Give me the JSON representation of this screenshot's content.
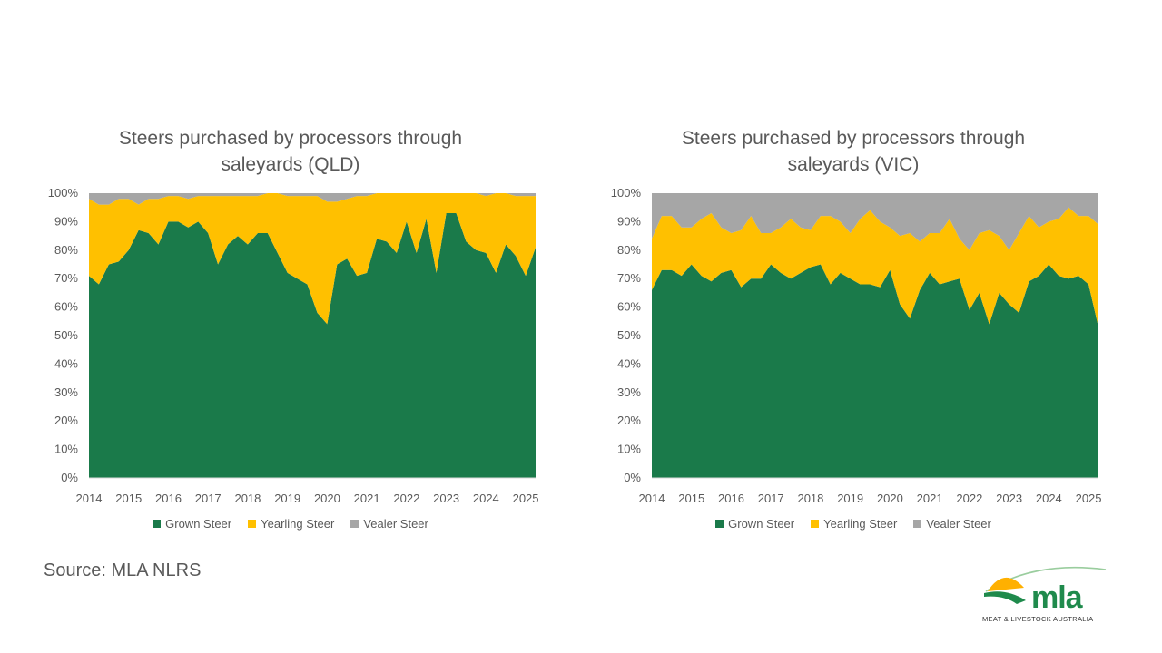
{
  "source": "Source: MLA NLRS",
  "logo": {
    "word": "mla",
    "subtitle": "MEAT & LIVESTOCK AUSTRALIA"
  },
  "colors": {
    "grown": "#1a7a4a",
    "yearling": "#ffc000",
    "vealer": "#a6a6a6",
    "text": "#595959",
    "axis": "#d9d9d9"
  },
  "chart_data": [
    {
      "type": "area",
      "stacked": true,
      "title": [
        "Steers purchased by processors through",
        "saleyards (QLD)"
      ],
      "xlabel": "",
      "ylabel": "",
      "x_range": [
        2014,
        2025.25
      ],
      "ylim": [
        0,
        100
      ],
      "y_ticks": [
        "0%",
        "10%",
        "20%",
        "30%",
        "40%",
        "50%",
        "60%",
        "70%",
        "80%",
        "90%",
        "100%"
      ],
      "x_ticks": [
        "2014",
        "2015",
        "2016",
        "2017",
        "2018",
        "2019",
        "2020",
        "2021",
        "2022",
        "2023",
        "2024",
        "2025"
      ],
      "legend": [
        "Grown Steer",
        "Yearling Steer",
        "Vealer Steer"
      ],
      "legend_position": "bottom",
      "x": [
        2014,
        2014.25,
        2014.5,
        2014.75,
        2015,
        2015.25,
        2015.5,
        2015.75,
        2016,
        2016.25,
        2016.5,
        2016.75,
        2017,
        2017.25,
        2017.5,
        2017.75,
        2018,
        2018.25,
        2018.5,
        2018.75,
        2019,
        2019.25,
        2019.5,
        2019.75,
        2020,
        2020.25,
        2020.5,
        2020.75,
        2021,
        2021.25,
        2021.5,
        2021.75,
        2022,
        2022.25,
        2022.5,
        2022.75,
        2023,
        2023.25,
        2023.5,
        2023.75,
        2024,
        2024.25,
        2024.5,
        2024.75,
        2025,
        2025.25
      ],
      "series": [
        {
          "name": "Grown Steer",
          "values": [
            71,
            68,
            75,
            76,
            80,
            87,
            86,
            82,
            90,
            90,
            88,
            90,
            86,
            75,
            82,
            85,
            82,
            86,
            86,
            79,
            72,
            70,
            68,
            58,
            54,
            75,
            77,
            71,
            72,
            84,
            83,
            79,
            90,
            79,
            91,
            72,
            93,
            93,
            83,
            80,
            79,
            72,
            82,
            78,
            71,
            81
          ]
        },
        {
          "name": "Yearling Steer",
          "values": [
            27,
            28,
            21,
            22,
            18,
            9,
            12,
            16,
            9,
            9,
            10,
            9,
            13,
            24,
            17,
            14,
            17,
            13,
            14,
            21,
            27,
            29,
            31,
            41,
            43,
            22,
            21,
            28,
            27,
            16,
            17,
            21,
            10,
            21,
            9,
            28,
            7,
            7,
            17,
            20,
            20,
            28,
            18,
            21,
            28,
            18
          ]
        },
        {
          "name": "Vealer Steer",
          "values": [
            2,
            4,
            4,
            2,
            2,
            4,
            2,
            2,
            1,
            1,
            2,
            1,
            1,
            1,
            1,
            1,
            1,
            1,
            0,
            0,
            1,
            1,
            1,
            1,
            3,
            3,
            2,
            1,
            1,
            0,
            0,
            0,
            0,
            0,
            0,
            0,
            0,
            0,
            0,
            0,
            1,
            0,
            0,
            1,
            1,
            1
          ]
        }
      ]
    },
    {
      "type": "area",
      "stacked": true,
      "title": [
        "Steers purchased by processors through",
        "saleyards (VIC)"
      ],
      "xlabel": "",
      "ylabel": "",
      "x_range": [
        2014,
        2025.25
      ],
      "ylim": [
        0,
        100
      ],
      "y_ticks": [
        "0%",
        "10%",
        "20%",
        "30%",
        "40%",
        "50%",
        "60%",
        "70%",
        "80%",
        "90%",
        "100%"
      ],
      "x_ticks": [
        "2014",
        "2015",
        "2016",
        "2017",
        "2018",
        "2019",
        "2020",
        "2021",
        "2022",
        "2023",
        "2024",
        "2025"
      ],
      "legend": [
        "Grown Steer",
        "Yearling Steer",
        "Vealer Steer"
      ],
      "legend_position": "bottom",
      "x": [
        2014,
        2014.25,
        2014.5,
        2014.75,
        2015,
        2015.25,
        2015.5,
        2015.75,
        2016,
        2016.25,
        2016.5,
        2016.75,
        2017,
        2017.25,
        2017.5,
        2017.75,
        2018,
        2018.25,
        2018.5,
        2018.75,
        2019,
        2019.25,
        2019.5,
        2019.75,
        2020,
        2020.25,
        2020.5,
        2020.75,
        2021,
        2021.25,
        2021.5,
        2021.75,
        2022,
        2022.25,
        2022.5,
        2022.75,
        2023,
        2023.25,
        2023.5,
        2023.75,
        2024,
        2024.25,
        2024.5,
        2024.75,
        2025,
        2025.25
      ],
      "series": [
        {
          "name": "Grown Steer",
          "values": [
            66,
            73,
            73,
            71,
            75,
            71,
            69,
            72,
            73,
            67,
            70,
            70,
            75,
            72,
            70,
            72,
            74,
            75,
            68,
            72,
            70,
            68,
            68,
            67,
            73,
            61,
            56,
            66,
            72,
            68,
            69,
            70,
            59,
            65,
            54,
            65,
            61,
            58,
            69,
            71,
            75,
            71,
            70,
            71,
            68,
            53
          ]
        },
        {
          "name": "Yearling Steer",
          "values": [
            18,
            19,
            19,
            17,
            13,
            20,
            24,
            16,
            13,
            20,
            22,
            16,
            11,
            16,
            21,
            16,
            13,
            17,
            24,
            18,
            16,
            23,
            26,
            23,
            15,
            24,
            30,
            17,
            14,
            18,
            22,
            14,
            21,
            21,
            33,
            20,
            19,
            28,
            23,
            17,
            15,
            20,
            25,
            21,
            24,
            36
          ]
        },
        {
          "name": "Vealer Steer",
          "values": [
            16,
            8,
            8,
            12,
            12,
            9,
            7,
            12,
            14,
            13,
            8,
            14,
            14,
            12,
            9,
            12,
            13,
            8,
            8,
            10,
            14,
            9,
            6,
            10,
            12,
            15,
            14,
            17,
            14,
            14,
            9,
            16,
            20,
            14,
            13,
            15,
            20,
            14,
            8,
            12,
            10,
            9,
            5,
            8,
            8,
            11
          ]
        }
      ]
    }
  ]
}
